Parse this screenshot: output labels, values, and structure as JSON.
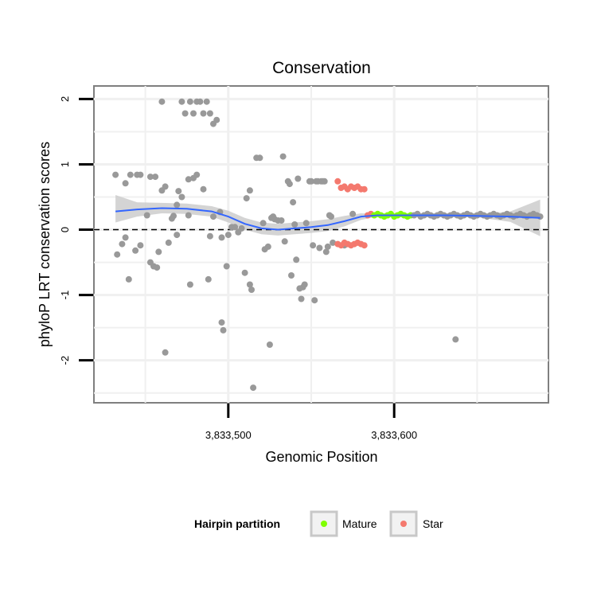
{
  "chart_data": {
    "type": "scatter",
    "title": "Conservation",
    "xlabel": "Genomic Position",
    "ylabel": "phyloP LRT conservation scores",
    "xlim": [
      3833419,
      3833693
    ],
    "ylim": [
      -2.65,
      2.2
    ],
    "x_ticks": [
      3833500,
      3833600
    ],
    "x_tick_labels": [
      "3,833,500",
      "3,833,600"
    ],
    "y_ticks": [
      -2,
      -1,
      0,
      1,
      2
    ],
    "y_tick_labels": [
      "-2",
      "-1",
      "0",
      "1",
      "2"
    ],
    "reference_line": {
      "y": 0,
      "style": "dashed"
    },
    "legend": {
      "title": "Hairpin partition",
      "entries": [
        {
          "label": "Mature",
          "color": "#7fff00"
        },
        {
          "label": "Star",
          "color": "#f4796e"
        }
      ]
    },
    "colors": {
      "Other": "#999999",
      "Mature": "#7fff00",
      "Star": "#f4796e",
      "smooth": "#3366ff",
      "band": "#cccccc"
    },
    "series": [
      {
        "name": "Other",
        "points": [
          [
            3833432,
            0.84
          ],
          [
            3833438,
            0.71
          ],
          [
            3833441,
            0.84
          ],
          [
            3833445,
            0.84
          ],
          [
            3833447,
            0.84
          ],
          [
            3833453,
            0.81
          ],
          [
            3833456,
            0.81
          ],
          [
            3833433,
            -0.38
          ],
          [
            3833436,
            -0.22
          ],
          [
            3833438,
            -0.12
          ],
          [
            3833440,
            -0.76
          ],
          [
            3833444,
            -0.32
          ],
          [
            3833447,
            -0.24
          ],
          [
            3833451,
            0.22
          ],
          [
            3833453,
            -0.5
          ],
          [
            3833455,
            -0.56
          ],
          [
            3833457,
            -0.58
          ],
          [
            3833458,
            -0.34
          ],
          [
            3833464,
            -0.2
          ],
          [
            3833466,
            0.17
          ],
          [
            3833469,
            -0.08
          ],
          [
            3833460,
            0.6
          ],
          [
            3833462,
            0.66
          ],
          [
            3833467,
            0.21
          ],
          [
            3833469,
            0.38
          ],
          [
            3833470,
            0.59
          ],
          [
            3833472,
            0.5
          ],
          [
            3833476,
            0.22
          ],
          [
            3833460,
            1.96
          ],
          [
            3833472,
            1.96
          ],
          [
            3833474,
            1.78
          ],
          [
            3833477,
            1.96
          ],
          [
            3833479,
            1.78
          ],
          [
            3833481,
            1.96
          ],
          [
            3833483,
            1.96
          ],
          [
            3833485,
            1.78
          ],
          [
            3833487,
            1.96
          ],
          [
            3833489,
            1.78
          ],
          [
            3833491,
            1.62
          ],
          [
            3833493,
            1.68
          ],
          [
            3833476,
            0.77
          ],
          [
            3833479,
            0.79
          ],
          [
            3833481,
            0.84
          ],
          [
            3833485,
            0.62
          ],
          [
            3833462,
            -1.88
          ],
          [
            3833477,
            -0.84
          ],
          [
            3833488,
            -0.76
          ],
          [
            3833495,
            0.27
          ],
          [
            3833491,
            0.2
          ],
          [
            3833496,
            -1.42
          ],
          [
            3833497,
            -1.54
          ],
          [
            3833499,
            -0.56
          ],
          [
            3833500,
            -0.08
          ],
          [
            3833502,
            0.04
          ],
          [
            3833504,
            0.04
          ],
          [
            3833496,
            -0.12
          ],
          [
            3833489,
            -0.1
          ],
          [
            3833506,
            -0.04
          ],
          [
            3833508,
            0.02
          ],
          [
            3833510,
            -0.66
          ],
          [
            3833511,
            0.48
          ],
          [
            3833513,
            0.6
          ],
          [
            3833513,
            -0.84
          ],
          [
            3833514,
            -0.92
          ],
          [
            3833515,
            -2.42
          ],
          [
            3833517,
            1.1
          ],
          [
            3833519,
            1.1
          ],
          [
            3833521,
            0.1
          ],
          [
            3833522,
            -0.3
          ],
          [
            3833524,
            -0.26
          ],
          [
            3833525,
            -1.76
          ],
          [
            3833526,
            0.18
          ],
          [
            3833527,
            0.2
          ],
          [
            3833528,
            0.16
          ],
          [
            3833530,
            0.14
          ],
          [
            3833532,
            0.14
          ],
          [
            3833533,
            1.12
          ],
          [
            3833534,
            -0.18
          ],
          [
            3833536,
            0.74
          ],
          [
            3833537,
            0.7
          ],
          [
            3833538,
            -0.7
          ],
          [
            3833539,
            0.42
          ],
          [
            3833540,
            0.08
          ],
          [
            3833541,
            -0.46
          ],
          [
            3833542,
            0.78
          ],
          [
            3833543,
            -0.9
          ],
          [
            3833544,
            -1.06
          ],
          [
            3833545,
            -0.88
          ],
          [
            3833546,
            -0.84
          ],
          [
            3833547,
            0.1
          ],
          [
            3833549,
            0.74
          ],
          [
            3833550,
            0.74
          ],
          [
            3833551,
            -0.24
          ],
          [
            3833552,
            -1.08
          ],
          [
            3833553,
            0.74
          ],
          [
            3833554,
            0.74
          ],
          [
            3833555,
            -0.28
          ],
          [
            3833556,
            0.74
          ],
          [
            3833557,
            0.74
          ],
          [
            3833558,
            0.74
          ],
          [
            3833559,
            -0.34
          ],
          [
            3833560,
            -0.26
          ],
          [
            3833561,
            0.22
          ],
          [
            3833562,
            0.2
          ],
          [
            3833563,
            -0.2
          ],
          [
            3833570,
            -0.24
          ],
          [
            3833575,
            0.24
          ],
          [
            3833637,
            -1.68
          ]
        ]
      },
      {
        "name": "Star",
        "points": [
          [
            3833566,
            0.74
          ],
          [
            3833568,
            0.64
          ],
          [
            3833570,
            0.66
          ],
          [
            3833572,
            0.62
          ],
          [
            3833574,
            0.66
          ],
          [
            3833576,
            0.64
          ],
          [
            3833578,
            0.66
          ],
          [
            3833580,
            0.62
          ],
          [
            3833582,
            0.62
          ],
          [
            3833566,
            -0.22
          ],
          [
            3833568,
            -0.24
          ],
          [
            3833570,
            -0.2
          ],
          [
            3833572,
            -0.22
          ],
          [
            3833574,
            -0.24
          ],
          [
            3833576,
            -0.22
          ],
          [
            3833578,
            -0.2
          ],
          [
            3833580,
            -0.22
          ],
          [
            3833582,
            -0.24
          ],
          [
            3833584,
            0.22
          ],
          [
            3833586,
            0.24
          ]
        ]
      },
      {
        "name": "Mature",
        "points": [
          [
            3833588,
            0.22
          ],
          [
            3833590,
            0.24
          ],
          [
            3833592,
            0.22
          ],
          [
            3833594,
            0.2
          ],
          [
            3833596,
            0.22
          ],
          [
            3833598,
            0.24
          ],
          [
            3833600,
            0.2
          ],
          [
            3833602,
            0.22
          ],
          [
            3833604,
            0.24
          ],
          [
            3833606,
            0.22
          ],
          [
            3833608,
            0.2
          ],
          [
            3833610,
            0.22
          ]
        ]
      },
      {
        "name": "OtherRight",
        "color_key": "Other",
        "points": [
          [
            3833612,
            0.22
          ],
          [
            3833614,
            0.24
          ],
          [
            3833616,
            0.2
          ],
          [
            3833618,
            0.22
          ],
          [
            3833620,
            0.24
          ],
          [
            3833622,
            0.22
          ],
          [
            3833624,
            0.2
          ],
          [
            3833626,
            0.22
          ],
          [
            3833628,
            0.24
          ],
          [
            3833630,
            0.22
          ],
          [
            3833632,
            0.2
          ],
          [
            3833634,
            0.22
          ],
          [
            3833636,
            0.24
          ],
          [
            3833638,
            0.22
          ],
          [
            3833640,
            0.2
          ],
          [
            3833642,
            0.22
          ],
          [
            3833644,
            0.24
          ],
          [
            3833646,
            0.22
          ],
          [
            3833648,
            0.2
          ],
          [
            3833650,
            0.22
          ],
          [
            3833652,
            0.24
          ],
          [
            3833654,
            0.22
          ],
          [
            3833656,
            0.2
          ],
          [
            3833658,
            0.22
          ],
          [
            3833660,
            0.24
          ],
          [
            3833662,
            0.22
          ],
          [
            3833664,
            0.2
          ],
          [
            3833666,
            0.22
          ],
          [
            3833668,
            0.24
          ],
          [
            3833670,
            0.22
          ],
          [
            3833672,
            0.2
          ],
          [
            3833674,
            0.22
          ],
          [
            3833676,
            0.24
          ],
          [
            3833678,
            0.22
          ],
          [
            3833680,
            0.2
          ],
          [
            3833682,
            0.22
          ],
          [
            3833684,
            0.24
          ],
          [
            3833686,
            0.22
          ],
          [
            3833688,
            0.2
          ]
        ]
      }
    ],
    "smooth": {
      "x": [
        3833432,
        3833445,
        3833460,
        3833475,
        3833490,
        3833500,
        3833510,
        3833520,
        3833530,
        3833540,
        3833550,
        3833560,
        3833570,
        3833580,
        3833590,
        3833610,
        3833630,
        3833650,
        3833670,
        3833688
      ],
      "y": [
        0.28,
        0.31,
        0.33,
        0.32,
        0.28,
        0.2,
        0.09,
        0.02,
        0.0,
        0.02,
        0.04,
        0.07,
        0.13,
        0.2,
        0.22,
        0.22,
        0.22,
        0.21,
        0.2,
        0.18
      ],
      "lower": [
        0.11,
        0.2,
        0.25,
        0.24,
        0.2,
        0.11,
        0.0,
        -0.07,
        -0.09,
        -0.07,
        -0.05,
        -0.02,
        0.05,
        0.15,
        0.2,
        0.21,
        0.21,
        0.19,
        0.12,
        -0.1
      ],
      "upper": [
        0.53,
        0.42,
        0.41,
        0.4,
        0.36,
        0.29,
        0.18,
        0.11,
        0.09,
        0.11,
        0.13,
        0.16,
        0.21,
        0.25,
        0.24,
        0.23,
        0.23,
        0.23,
        0.28,
        0.46
      ]
    }
  }
}
